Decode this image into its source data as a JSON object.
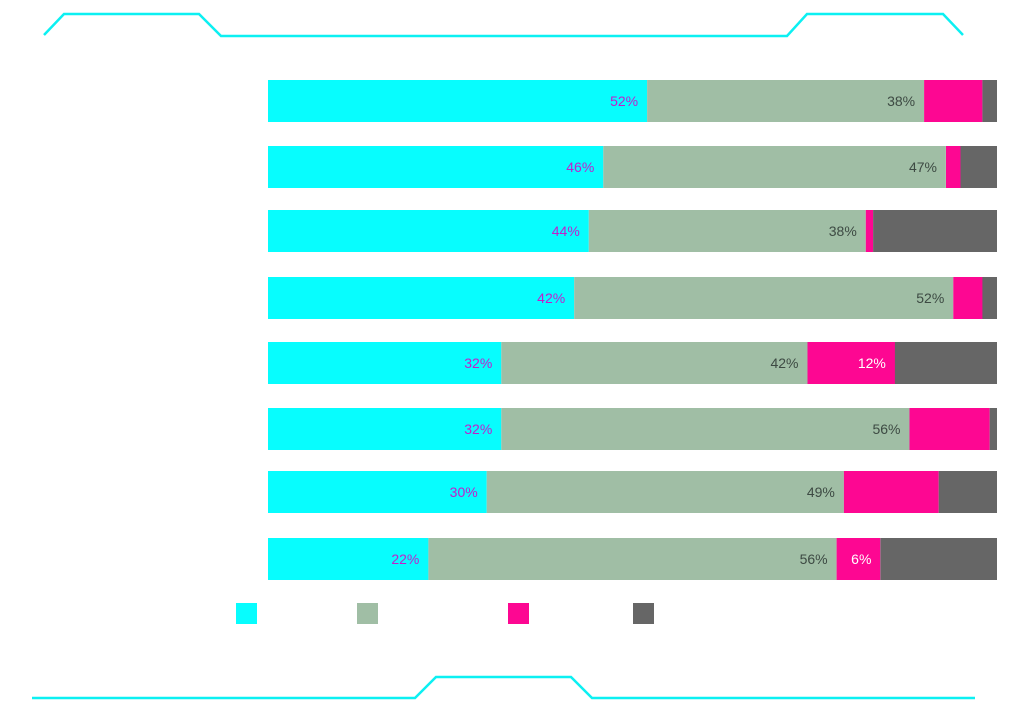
{
  "theme": {
    "frame_color": "#0cf0f2",
    "text_on_cyan": "#c21fcb",
    "text_on_sage": "#3d4a43",
    "text_on_magenta": "#ffffff"
  },
  "chart_data": {
    "type": "bar",
    "stacked": true,
    "orientation": "horizontal",
    "title": "",
    "xlabel": "",
    "ylabel": "",
    "xlim": [
      0,
      100
    ],
    "categories": [
      "",
      "",
      "",
      "",
      "",
      "",
      "",
      ""
    ],
    "series": [
      {
        "color": "#07fdfe",
        "values": [
          52,
          46,
          44,
          42,
          32,
          32,
          30,
          22
        ]
      },
      {
        "color": "#a0bea5",
        "values": [
          38,
          47,
          38,
          52,
          42,
          56,
          49,
          56
        ]
      },
      {
        "color": "#fd0792",
        "values": [
          8,
          2,
          1,
          4,
          12,
          11,
          13,
          6
        ]
      },
      {
        "color": "#666666",
        "values": [
          2,
          5,
          17,
          2,
          14,
          1,
          8,
          16
        ]
      }
    ],
    "data_labels": [
      [
        "52%",
        "38%",
        "",
        ""
      ],
      [
        "46%",
        "47%",
        "",
        ""
      ],
      [
        "44%",
        "38%",
        "",
        ""
      ],
      [
        "42%",
        "52%",
        "",
        ""
      ],
      [
        "32%",
        "42%",
        "12%",
        ""
      ],
      [
        "32%",
        "56%",
        "",
        ""
      ],
      [
        "30%",
        "49%",
        "",
        ""
      ],
      [
        "22%",
        "56%",
        "6%",
        ""
      ]
    ],
    "legend": {
      "position": "bottom",
      "entries": [
        "",
        "",
        "",
        ""
      ]
    }
  }
}
